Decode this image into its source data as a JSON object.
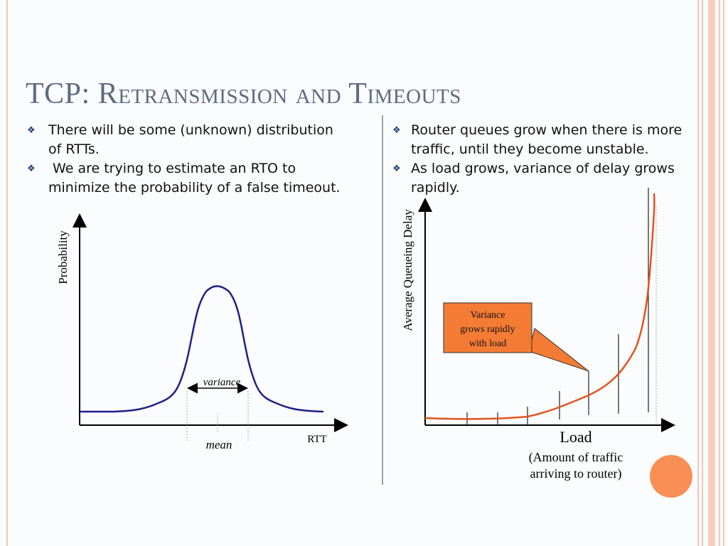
{
  "title": "TCP: Retransmission and Timeouts",
  "colors": {
    "accent": "#f07a4a",
    "title": "#5d6a82",
    "curve_blue": "#1c1f8a",
    "curve_orange": "#e2531f",
    "callout_fill": "#f47b34"
  },
  "left_bullets": [
    {
      "icon": "diamond-bullet-icon",
      "text_lines": [
        "There will be some (unknown) distribution",
        "of RTTs."
      ]
    },
    {
      "icon": "diamond-bullet-icon",
      "text_lines": [
        " We are trying to estimate an RTO to",
        "minimize the probability of a false timeout."
      ]
    }
  ],
  "right_bullets": [
    {
      "icon": "diamond-bullet-icon",
      "text_lines": [
        "Router queues grow when there is more",
        "traffic, until they become unstable."
      ]
    },
    {
      "icon": "diamond-bullet-icon",
      "text_lines": [
        "As load grows, variance of delay grows",
        "rapidly."
      ]
    }
  ],
  "rtt_chart": {
    "ylabel": "Probability",
    "xlabel": "RTT",
    "variance_label": "variance",
    "mean_label": "mean"
  },
  "load_chart": {
    "ylabel": "Average Queueing Delay",
    "xlabel": "Load",
    "xlabel_sub_line1": "(Amount of traffic",
    "xlabel_sub_line2": "arriving to router)",
    "callout_lines": [
      "Variance",
      "grows rapidly",
      "with load"
    ]
  }
}
